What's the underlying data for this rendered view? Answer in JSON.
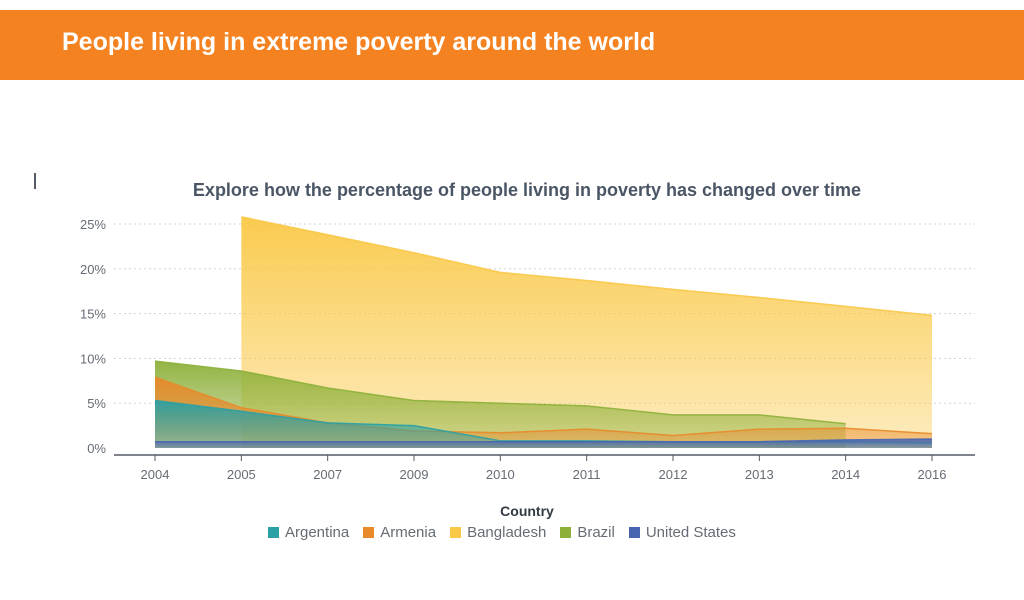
{
  "header": {
    "title": "People living in extreme poverty around the world"
  },
  "chart_data": {
    "type": "area",
    "title": "Explore how the percentage of people living in poverty has changed over time",
    "xlabel": "",
    "ylabel": "",
    "categories": [
      "2004",
      "2005",
      "2007",
      "2009",
      "2010",
      "2011",
      "2012",
      "2013",
      "2014",
      "2016"
    ],
    "ylim": [
      0,
      25
    ],
    "y_ticks": [
      {
        "value": 0,
        "label": "0%"
      },
      {
        "value": 5,
        "label": "5%"
      },
      {
        "value": 10,
        "label": "10%"
      },
      {
        "value": 15,
        "label": "15%"
      },
      {
        "value": 20,
        "label": "20%"
      },
      {
        "value": 25,
        "label": "25%"
      }
    ],
    "grid": true,
    "stacked": false,
    "legend_title": "Country",
    "legend_position": "bottom",
    "series": [
      {
        "name": "Bangladesh",
        "color": "#f9c846",
        "values": [
          null,
          25.8,
          23.8,
          21.8,
          19.6,
          18.7,
          17.7,
          16.8,
          15.8,
          14.8
        ]
      },
      {
        "name": "Brazil",
        "color": "#8db03a",
        "values": [
          9.7,
          8.6,
          6.7,
          5.3,
          5.0,
          4.7,
          3.7,
          3.7,
          2.7,
          null
        ]
      },
      {
        "name": "Armenia",
        "color": "#e8892a",
        "values": [
          7.9,
          4.5,
          2.8,
          1.9,
          1.7,
          2.1,
          1.4,
          2.1,
          2.2,
          1.6
        ]
      },
      {
        "name": "Argentina",
        "color": "#2aa0a4",
        "values": [
          5.3,
          4.1,
          2.8,
          2.5,
          0.8,
          0.8,
          0.7,
          0.7,
          0.7,
          0.6
        ]
      },
      {
        "name": "United States",
        "color": "#4a65b0",
        "values": [
          0.7,
          0.7,
          0.7,
          0.7,
          0.7,
          0.7,
          0.7,
          0.7,
          0.9,
          1.0
        ]
      }
    ],
    "legend_order": [
      "Argentina",
      "Armenia",
      "Bangladesh",
      "Brazil",
      "United States"
    ]
  }
}
